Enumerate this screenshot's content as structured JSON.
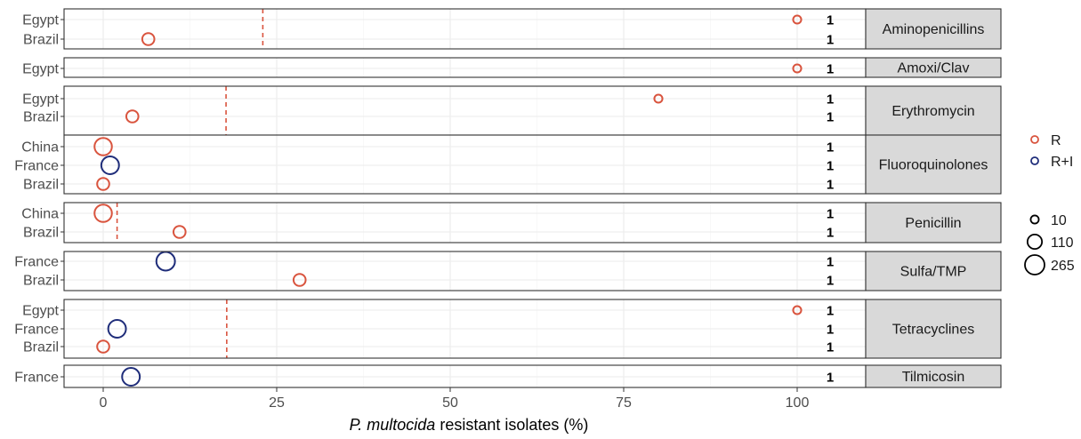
{
  "chart_data": {
    "type": "scatter",
    "xlabel_italic": "P. multocida",
    "xlabel_rest": " resistant isolates (%)",
    "xlim": [
      -5,
      110
    ],
    "x_ticks": [
      0,
      25,
      50,
      75,
      100
    ],
    "x_tick_labels": [
      "0",
      "25",
      "50",
      "75",
      "100"
    ],
    "grid": true,
    "colors": {
      "R": "#d9543e",
      "R+I": "#1f2d7a"
    },
    "legend_color": [
      {
        "key": "R",
        "label": "R"
      },
      {
        "key": "R+I",
        "label": "R+I"
      }
    ],
    "legend_size": [
      {
        "value": 10,
        "label": "10"
      },
      {
        "value": 110,
        "label": "110"
      },
      {
        "value": 265,
        "label": "265"
      }
    ],
    "panels": [
      {
        "name": "Aminopenicillins",
        "vline": 23,
        "rows": [
          {
            "country": "Egypt",
            "x": 100,
            "n": 10,
            "type": "R",
            "count_label": "1"
          },
          {
            "country": "Brazil",
            "x": 6.5,
            "n": 60,
            "type": "R",
            "count_label": "1"
          }
        ]
      },
      {
        "name": "Amoxi/Clav",
        "vline": null,
        "rows": [
          {
            "country": "Egypt",
            "x": 100,
            "n": 10,
            "type": "R",
            "count_label": "1"
          }
        ]
      },
      {
        "name": "Erythromycin",
        "vline": 17.7,
        "rows": [
          {
            "country": "Egypt",
            "x": 80,
            "n": 10,
            "type": "R",
            "count_label": "1"
          },
          {
            "country": "Brazil",
            "x": 4.2,
            "n": 60,
            "type": "R",
            "count_label": "1"
          }
        ]
      },
      {
        "name": "Fluoroquinolones",
        "vline": null,
        "rows": [
          {
            "country": "China",
            "x": 0,
            "n": 190,
            "type": "R",
            "count_label": "1"
          },
          {
            "country": "France",
            "x": 1,
            "n": 200,
            "type": "R+I",
            "count_label": "1"
          },
          {
            "country": "Brazil",
            "x": 0,
            "n": 60,
            "type": "R",
            "count_label": "1"
          }
        ]
      },
      {
        "name": "Penicillin",
        "vline": 2,
        "rows": [
          {
            "country": "China",
            "x": 0,
            "n": 190,
            "type": "R",
            "count_label": "1"
          },
          {
            "country": "Brazil",
            "x": 11,
            "n": 60,
            "type": "R",
            "count_label": "1"
          }
        ]
      },
      {
        "name": "Sulfa/TMP",
        "vline": null,
        "rows": [
          {
            "country": "France",
            "x": 9,
            "n": 230,
            "type": "R+I",
            "count_label": "1"
          },
          {
            "country": "Brazil",
            "x": 28.3,
            "n": 60,
            "type": "R",
            "count_label": "1"
          }
        ]
      },
      {
        "name": "Tetracyclines",
        "vline": 17.8,
        "rows": [
          {
            "country": "Egypt",
            "x": 100,
            "n": 10,
            "type": "R",
            "count_label": "1"
          },
          {
            "country": "France",
            "x": 2,
            "n": 200,
            "type": "R+I",
            "count_label": "1"
          },
          {
            "country": "Brazil",
            "x": 0,
            "n": 60,
            "type": "R",
            "count_label": "1"
          }
        ]
      },
      {
        "name": "Tilmicosin",
        "vline": null,
        "rows": [
          {
            "country": "France",
            "x": 4,
            "n": 200,
            "type": "R+I",
            "count_label": "1"
          }
        ]
      }
    ]
  }
}
